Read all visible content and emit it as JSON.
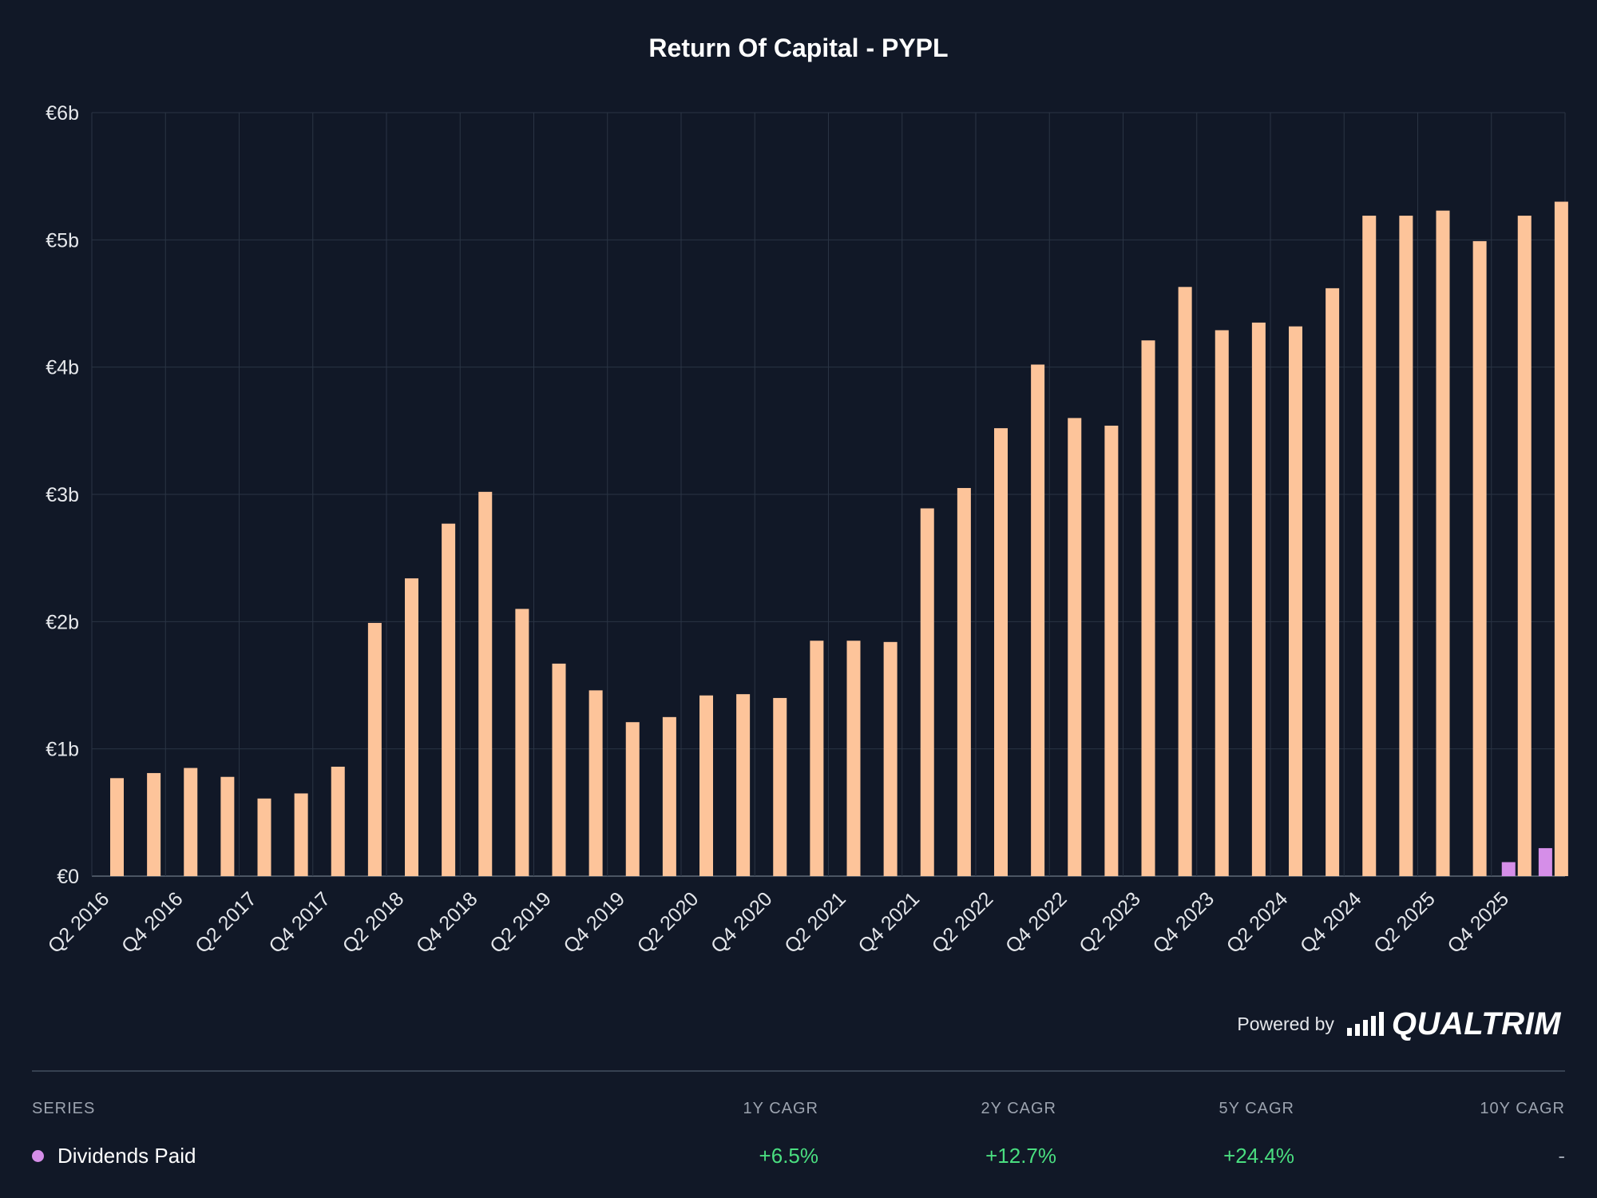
{
  "chart_data": {
    "type": "bar",
    "title": "Return Of Capital - PYPL",
    "categories": [
      "Q2 2016",
      "Q3 2016",
      "Q4 2016",
      "Q1 2017",
      "Q2 2017",
      "Q3 2017",
      "Q4 2017",
      "Q1 2018",
      "Q2 2018",
      "Q3 2018",
      "Q4 2018",
      "Q1 2019",
      "Q2 2019",
      "Q3 2019",
      "Q4 2019",
      "Q1 2020",
      "Q2 2020",
      "Q3 2020",
      "Q4 2020",
      "Q1 2021",
      "Q2 2021",
      "Q3 2021",
      "Q4 2021",
      "Q1 2022",
      "Q2 2022",
      "Q3 2022",
      "Q4 2022",
      "Q1 2023",
      "Q2 2023",
      "Q3 2023",
      "Q4 2023",
      "Q1 2024",
      "Q2 2024",
      "Q3 2024",
      "Q4 2024",
      "Q1 2025",
      "Q2 2025",
      "Q3 2025",
      "Q4 2025",
      "Q1 2026"
    ],
    "x_tick_labels": [
      "Q2 2016",
      "Q4 2016",
      "Q2 2017",
      "Q4 2017",
      "Q2 2018",
      "Q4 2018",
      "Q2 2019",
      "Q4 2019",
      "Q2 2020",
      "Q4 2020",
      "Q2 2021",
      "Q4 2021",
      "Q2 2022",
      "Q4 2022",
      "Q2 2023",
      "Q4 2023",
      "Q2 2024",
      "Q4 2024",
      "Q2 2025",
      "Q4 2025"
    ],
    "y_tick_labels": [
      "€0",
      "€1b",
      "€2b",
      "€3b",
      "€4b",
      "€5b",
      "€6b"
    ],
    "ylim": [
      0,
      6
    ],
    "y_unit": "b",
    "grid": true,
    "series": [
      {
        "color": "#fdc49a",
        "values": [
          0.77,
          0.81,
          0.85,
          0.78,
          0.61,
          0.65,
          0.86,
          1.99,
          2.34,
          2.77,
          3.02,
          2.1,
          1.67,
          1.46,
          1.21,
          1.25,
          1.42,
          1.43,
          1.4,
          1.85,
          1.85,
          1.84,
          2.89,
          3.05,
          3.52,
          4.02,
          3.6,
          3.54,
          4.21,
          4.63,
          4.29,
          4.35,
          4.32,
          4.62,
          5.19,
          5.19,
          5.23,
          4.99,
          5.19,
          5.3
        ]
      },
      {
        "name": "Dividends Paid",
        "color": "#d58ee8",
        "values": [
          0,
          0,
          0,
          0,
          0,
          0,
          0,
          0,
          0,
          0,
          0,
          0,
          0,
          0,
          0,
          0,
          0,
          0,
          0,
          0,
          0,
          0,
          0,
          0,
          0,
          0,
          0,
          0,
          0,
          0,
          0,
          0,
          0,
          0,
          0,
          0,
          0,
          0,
          0.11,
          0.22
        ]
      }
    ]
  },
  "footer": {
    "powered_by": "Powered by",
    "brand": "QUALTRIM"
  },
  "table": {
    "headers": {
      "series": "SERIES",
      "cagr_1y": "1Y CAGR",
      "cagr_2y": "2Y CAGR",
      "cagr_5y": "5Y CAGR",
      "cagr_10y": "10Y CAGR"
    },
    "rows": [
      {
        "series": "Dividends Paid",
        "color": "#d58ee8",
        "cagr_1y": "+6.5%",
        "cagr_2y": "+12.7%",
        "cagr_5y": "+24.4%",
        "cagr_10y": "-"
      }
    ]
  }
}
